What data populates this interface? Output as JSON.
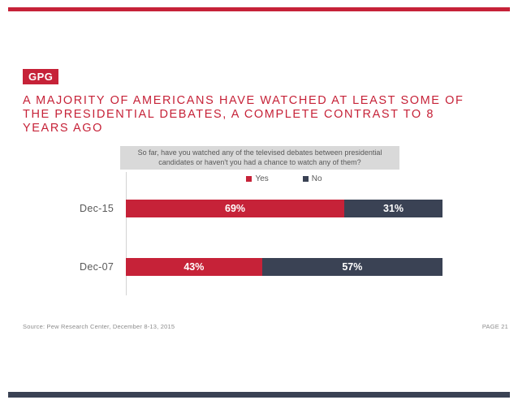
{
  "brand": {
    "logo_text": "GPG",
    "red": "#C62238",
    "navy": "#3A4254"
  },
  "header": {
    "title": "A MAJORITY OF AMERICANS HAVE WATCHED AT LEAST SOME OF THE PRESIDENTIAL DEBATES, A COMPLETE CONTRAST TO 8 YEARS AGO"
  },
  "question_box": {
    "text": "So far, have you watched any of the televised debates between presidential candidates or haven't you had a chance to watch any of them?"
  },
  "chart_data": {
    "type": "bar",
    "orientation": "horizontal",
    "stacked": true,
    "categories": [
      "Dec-15",
      "Dec-07"
    ],
    "series": [
      {
        "name": "Yes",
        "color": "#C62238",
        "values": [
          69,
          43
        ]
      },
      {
        "name": "No",
        "color": "#3A4254",
        "values": [
          31,
          57
        ]
      }
    ],
    "value_format": "percent",
    "xlim": [
      0,
      100
    ],
    "grid": false,
    "legend_position": "top-center",
    "data_labels": [
      "69%",
      "31%",
      "43%",
      "57%"
    ],
    "data_label_color": "#ffffff"
  },
  "footer": {
    "source": "Source: Pew Research Center, December 8-13, 2015",
    "page": "PAGE 21"
  }
}
